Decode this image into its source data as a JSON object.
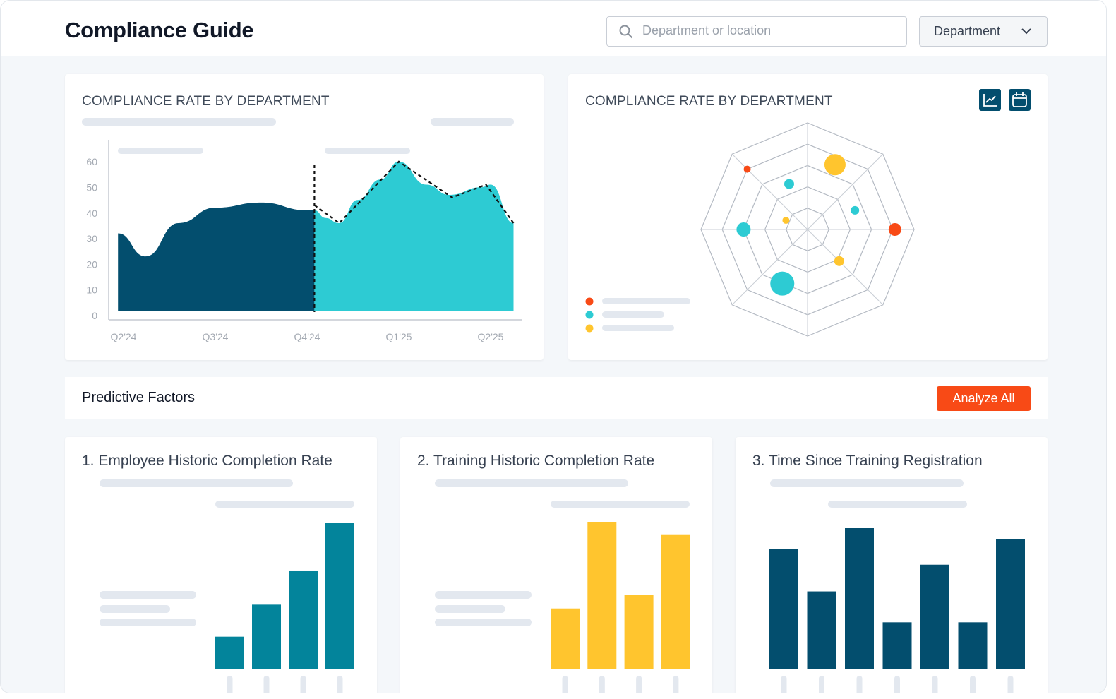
{
  "header": {
    "title": "Compliance Guide",
    "search_placeholder": "Department or location",
    "search_value": "",
    "dropdown_label": "Department",
    "search_icon": "magnifier-icon",
    "dropdown_icon": "chevron-down-icon"
  },
  "colors": {
    "dark_teal": "#034e6e",
    "teal": "#2dcbd3",
    "bar_teal": "#03849b",
    "yellow": "#ffc52e",
    "red": "#f84a16"
  },
  "area_card": {
    "title": "COMPLIANCE RATE BY DEPARTMENT"
  },
  "radar_card": {
    "title": "COMPLIANCE RATE BY DEPARTMENT",
    "icons": [
      "line-chart-icon",
      "calendar-icon"
    ]
  },
  "predictive": {
    "title": "Predictive Factors",
    "analyze_label": "Analyze All"
  },
  "factor_cards": [
    {
      "title": "1. Employee Historic Completion Rate"
    },
    {
      "title": "2. Training Historic Completion Rate"
    },
    {
      "title": "3. Time Since Training Registration"
    }
  ],
  "chart_data": [
    {
      "type": "area",
      "title": "COMPLIANCE RATE BY DEPARTMENT",
      "xlabel": "",
      "ylabel": "",
      "x_ticks": [
        "Q2'24",
        "Q3'24",
        "Q4'24",
        "Q1'25",
        "Q2'25"
      ],
      "y_ticks": [
        0,
        10,
        20,
        30,
        40,
        50,
        60
      ],
      "ylim": [
        0,
        65
      ],
      "grid": false,
      "series": [
        {
          "color": "#034e6e",
          "points": [
            [
              -0.06,
              31
            ],
            [
              0.24,
              22
            ],
            [
              0.6,
              35
            ],
            [
              1.0,
              41
            ],
            [
              1.5,
              43
            ],
            [
              2.0,
              40
            ],
            [
              2.08,
              40
            ]
          ]
        },
        {
          "color": "#2dcbd3",
          "points": [
            [
              2.08,
              40
            ],
            [
              2.2,
              37
            ],
            [
              2.35,
              35
            ],
            [
              2.55,
              44
            ],
            [
              2.8,
              52
            ],
            [
              3.0,
              59
            ],
            [
              3.3,
              50
            ],
            [
              3.55,
              46
            ],
            [
              3.9,
              49
            ],
            [
              4.0,
              50
            ],
            [
              4.25,
              35
            ]
          ]
        },
        {
          "style": "dashed",
          "color": "#111111",
          "points": [
            [
              2.08,
              42
            ],
            [
              2.35,
              35
            ],
            [
              3.0,
              59
            ],
            [
              3.58,
              45
            ],
            [
              3.95,
              50
            ],
            [
              4.25,
              35
            ]
          ]
        }
      ],
      "vertical_marker_x": 2.08
    },
    {
      "type": "radar-bubble",
      "title": "COMPLIANCE RATE BY DEPARTMENT",
      "axes": 8,
      "rings": 5,
      "legend_colors": [
        "#f84a16",
        "#2dcbd3",
        "#ffc52e"
      ],
      "points": [
        {
          "angle": 135,
          "r": 4.0,
          "size": 1,
          "color": "#f84a16"
        },
        {
          "angle": 67,
          "r": 3.3,
          "size": 3,
          "color": "#ffc52e"
        },
        {
          "angle": 112,
          "r": 2.3,
          "size": 1.4,
          "color": "#2dcbd3"
        },
        {
          "angle": 22,
          "r": 2.4,
          "size": 1.2,
          "color": "#2dcbd3"
        },
        {
          "angle": 0,
          "r": 4.1,
          "size": 1.8,
          "color": "#f84a16"
        },
        {
          "angle": 180,
          "r": 3.0,
          "size": 2,
          "color": "#2dcbd3"
        },
        {
          "angle": 157,
          "r": 1.1,
          "size": 1,
          "color": "#ffc52e"
        },
        {
          "angle": 315,
          "r": 2.1,
          "size": 1.4,
          "color": "#ffc52e"
        },
        {
          "angle": 245,
          "r": 2.8,
          "size": 3.4,
          "color": "#2dcbd3"
        }
      ]
    },
    {
      "type": "bar",
      "color": "#03849b",
      "values": [
        22,
        44,
        67,
        100
      ]
    },
    {
      "type": "bar",
      "color": "#ffc52e",
      "values": [
        41,
        100,
        50,
        91
      ]
    },
    {
      "type": "bar",
      "color": "#034e6e",
      "values": [
        85,
        55,
        100,
        33,
        74,
        33,
        92
      ]
    }
  ]
}
